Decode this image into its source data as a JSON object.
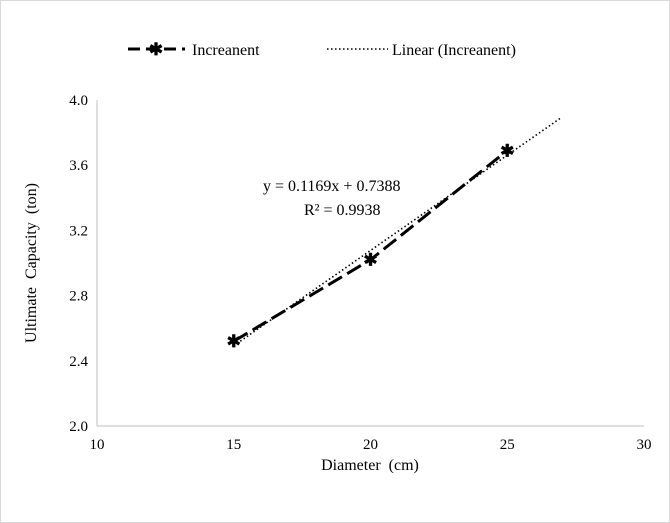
{
  "chart_data": {
    "type": "scatter",
    "xlabel": "Diameter  (cm)",
    "ylabel": "Ultimate  Capacity  (ton)",
    "xlim": [
      10,
      30
    ],
    "ylim": [
      2.0,
      4.0
    ],
    "x_ticks": [
      "10",
      "15",
      "20",
      "25",
      "30"
    ],
    "y_ticks": [
      "2.0",
      "2.4",
      "2.8",
      "3.2",
      "3.6",
      "4.0"
    ],
    "grid": false,
    "legend_position": "top",
    "series": [
      {
        "name": "Increanent",
        "style": "dashed line with star markers",
        "color": "#000000",
        "points": [
          {
            "x": 15,
            "y": 2.52
          },
          {
            "x": 20,
            "y": 3.02
          },
          {
            "x": 25,
            "y": 3.69
          }
        ]
      },
      {
        "name": "Linear (Increanent)",
        "style": "dotted trendline",
        "color": "#000000",
        "slope": 0.1169,
        "intercept": 0.7388,
        "x_range": [
          15,
          27
        ]
      }
    ],
    "annotations": {
      "equation": "y = 0.1169x + 0.7388",
      "r_squared": "R² = 0.9938"
    }
  }
}
